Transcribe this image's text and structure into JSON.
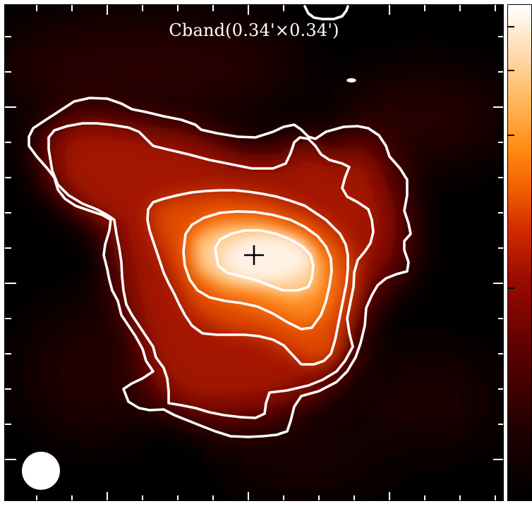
{
  "title": "Cband(0.34'×0.34')",
  "colormap": [
    "#000000",
    "#5a0000",
    "#d42d00",
    "#ff8c14",
    "#ffffff"
  ],
  "contour_color": "#ffffff",
  "marker": "plus-icon",
  "beam": "white-circle"
}
